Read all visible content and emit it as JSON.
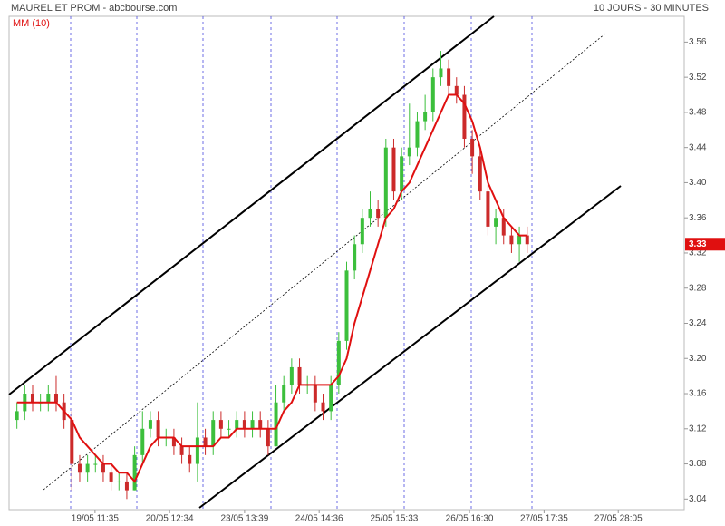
{
  "chart_data": {
    "type": "candlestick",
    "title": "MAUREL ET PROM - abcbourse.com",
    "subtitle": "10 JOURS - 30 MINUTES",
    "x": [
      2,
      4,
      6,
      8,
      10,
      12,
      14,
      16,
      18,
      20,
      22,
      24,
      26,
      28,
      30,
      32,
      34,
      36,
      38,
      40,
      42,
      44,
      46,
      48,
      50,
      52,
      54,
      56,
      58,
      60,
      62,
      64,
      66,
      68,
      70,
      72,
      74,
      76,
      78,
      80,
      82,
      84,
      86,
      88,
      90,
      92,
      94,
      96,
      98,
      100,
      102,
      104,
      106,
      108,
      110,
      112,
      114,
      116,
      118,
      120,
      122,
      124,
      126,
      128,
      130,
      132
    ],
    "open": [
      3.13,
      3.14,
      3.16,
      3.15,
      3.15,
      3.16,
      3.15,
      3.13,
      3.08,
      3.07,
      3.08,
      3.08,
      3.07,
      3.06,
      3.06,
      3.05,
      3.09,
      3.12,
      3.13,
      3.11,
      3.11,
      3.1,
      3.09,
      3.08,
      3.11,
      3.1,
      3.13,
      3.12,
      3.12,
      3.13,
      3.12,
      3.13,
      3.12,
      3.1,
      3.15,
      3.17,
      3.19,
      3.17,
      3.17,
      3.15,
      3.14,
      3.17,
      3.22,
      3.3,
      3.33,
      3.36,
      3.37,
      3.36,
      3.44,
      3.39,
      3.43,
      3.44,
      3.47,
      3.48,
      3.52,
      3.53,
      3.51,
      3.5,
      3.45,
      3.43,
      3.39,
      3.35,
      3.36,
      3.34,
      3.33,
      3.34
    ],
    "high": [
      3.15,
      3.17,
      3.17,
      3.16,
      3.17,
      3.18,
      3.16,
      3.14,
      3.09,
      3.09,
      3.09,
      3.09,
      3.08,
      3.07,
      3.07,
      3.1,
      3.14,
      3.14,
      3.14,
      3.12,
      3.12,
      3.11,
      3.1,
      3.15,
      3.12,
      3.14,
      3.14,
      3.13,
      3.14,
      3.14,
      3.14,
      3.14,
      3.13,
      3.17,
      3.18,
      3.2,
      3.2,
      3.18,
      3.18,
      3.16,
      3.18,
      3.23,
      3.31,
      3.34,
      3.37,
      3.39,
      3.38,
      3.45,
      3.45,
      3.44,
      3.49,
      3.48,
      3.5,
      3.53,
      3.55,
      3.54,
      3.52,
      3.51,
      3.46,
      3.44,
      3.4,
      3.37,
      3.37,
      3.35,
      3.35,
      3.35
    ],
    "low": [
      3.12,
      3.13,
      3.14,
      3.14,
      3.14,
      3.14,
      3.12,
      3.05,
      3.06,
      3.06,
      3.07,
      3.06,
      3.05,
      3.05,
      3.04,
      3.05,
      3.08,
      3.11,
      3.1,
      3.1,
      3.09,
      3.08,
      3.07,
      3.06,
      3.09,
      3.09,
      3.11,
      3.11,
      3.11,
      3.11,
      3.11,
      3.11,
      3.09,
      3.1,
      3.14,
      3.16,
      3.16,
      3.16,
      3.14,
      3.13,
      3.13,
      3.16,
      3.21,
      3.29,
      3.32,
      3.35,
      3.35,
      3.35,
      3.38,
      3.38,
      3.42,
      3.43,
      3.46,
      3.47,
      3.51,
      3.5,
      3.49,
      3.44,
      3.41,
      3.38,
      3.34,
      3.33,
      3.33,
      3.32,
      3.31,
      3.32
    ],
    "close": [
      3.14,
      3.16,
      3.15,
      3.15,
      3.16,
      3.15,
      3.13,
      3.08,
      3.07,
      3.08,
      3.08,
      3.07,
      3.06,
      3.06,
      3.05,
      3.09,
      3.12,
      3.13,
      3.11,
      3.11,
      3.1,
      3.09,
      3.08,
      3.11,
      3.1,
      3.13,
      3.12,
      3.12,
      3.13,
      3.12,
      3.13,
      3.12,
      3.1,
      3.15,
      3.17,
      3.19,
      3.17,
      3.17,
      3.15,
      3.14,
      3.17,
      3.22,
      3.3,
      3.33,
      3.36,
      3.37,
      3.36,
      3.44,
      3.39,
      3.43,
      3.44,
      3.47,
      3.48,
      3.52,
      3.53,
      3.51,
      3.5,
      3.45,
      3.43,
      3.39,
      3.35,
      3.36,
      3.34,
      3.33,
      3.34,
      3.33
    ],
    "up_color": "#3cbf3c",
    "down_color": "#cc2a2a",
    "series": [
      {
        "name": "MM (10)",
        "color": "#e01010",
        "values": [
          3.15,
          3.15,
          3.15,
          3.15,
          3.15,
          3.15,
          3.14,
          3.13,
          3.11,
          3.1,
          3.09,
          3.08,
          3.08,
          3.07,
          3.07,
          3.06,
          3.08,
          3.1,
          3.11,
          3.11,
          3.11,
          3.1,
          3.1,
          3.1,
          3.1,
          3.1,
          3.11,
          3.11,
          3.12,
          3.12,
          3.12,
          3.12,
          3.12,
          3.12,
          3.14,
          3.15,
          3.17,
          3.17,
          3.17,
          3.17,
          3.17,
          3.18,
          3.2,
          3.24,
          3.27,
          3.3,
          3.33,
          3.36,
          3.37,
          3.39,
          3.4,
          3.42,
          3.44,
          3.46,
          3.48,
          3.5,
          3.5,
          3.49,
          3.47,
          3.44,
          3.4,
          3.38,
          3.36,
          3.35,
          3.34,
          3.34
        ]
      }
    ],
    "last_price": 3.33,
    "xlim": [
      0,
      172
    ],
    "xticks": [
      {
        "value": 21.9,
        "label": "19/05 11:35"
      },
      {
        "value": 40.9,
        "label": "20/05 12:34"
      },
      {
        "value": 60,
        "label": "23/05 13:39"
      },
      {
        "value": 79,
        "label": "24/05 14:36"
      },
      {
        "value": 98.1,
        "label": "25/05 15:33"
      },
      {
        "value": 117.3,
        "label": "26/05 16:30"
      },
      {
        "value": 136.3,
        "label": "27/05 17:35"
      },
      {
        "value": 155.2,
        "label": "27/05 28:05"
      }
    ],
    "ylim": [
      3.03,
      3.58
    ],
    "yticks": [
      3.04,
      3.08,
      3.12,
      3.16,
      {
        "value": 3.2,
        "label": "3.20"
      },
      3.24,
      3.28,
      3.32,
      3.36,
      {
        "value": 3.4,
        "label": "3.40"
      },
      3.44,
      3.48,
      3.52,
      3.56
    ]
  }
}
